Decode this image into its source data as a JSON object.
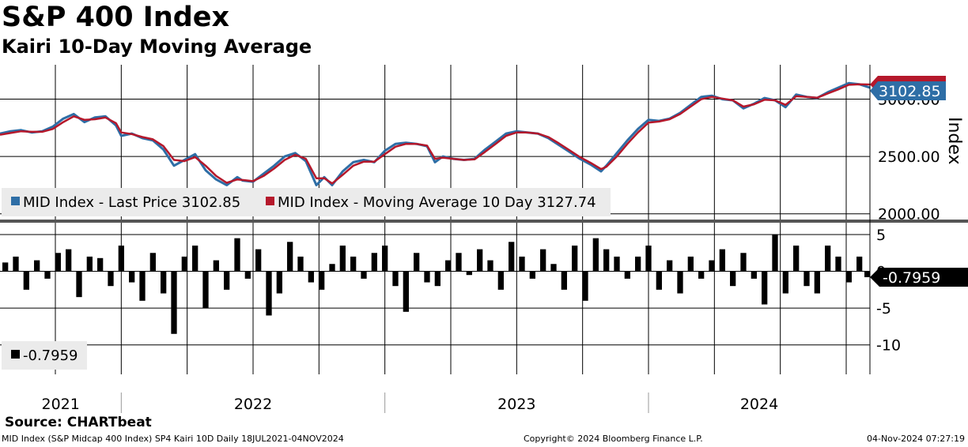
{
  "title": "S&P 400 Index",
  "subtitle": "Kairi 10-Day Moving Average",
  "source": "Source: CHARTbeat",
  "footer": {
    "left": "MID Index (S&P Midcap 400 Index) SP4 Kairi 10D  Daily 18JUL2021-04NOV2024",
    "center": "Copyright© 2024 Bloomberg Finance L.P.",
    "right": "04-Nov-2024 07:27:19"
  },
  "colors": {
    "price": "#2e6ea6",
    "ma": "#b5182b",
    "kairi": "#000000",
    "grid": "#000000"
  },
  "chart_data": [
    {
      "type": "line",
      "title": "S&P 400 Index",
      "ylabel": "Index",
      "ylim": [
        1950,
        3300
      ],
      "yticks": [
        2000,
        2500,
        3000
      ],
      "ytick_labels": [
        "2000.00",
        "2500.00",
        "3000.00"
      ],
      "x_range": [
        2021.54,
        2024.84
      ],
      "years": [
        "2021",
        "2022",
        "2023",
        "2024"
      ],
      "legend_placement": "bottom-left",
      "series": [
        {
          "name": "MID Index - Last Price",
          "legend": "MID Index - Last Price 3102.85",
          "color_key": "price",
          "last_label": "3102.85",
          "x": [
            2021.54,
            2021.58,
            2021.62,
            2021.66,
            2021.7,
            2021.74,
            2021.78,
            2021.82,
            2021.86,
            2021.9,
            2021.94,
            2021.98,
            2022.0,
            2022.04,
            2022.08,
            2022.12,
            2022.16,
            2022.2,
            2022.24,
            2022.28,
            2022.32,
            2022.36,
            2022.4,
            2022.44,
            2022.46,
            2022.5,
            2022.54,
            2022.58,
            2022.62,
            2022.66,
            2022.7,
            2022.74,
            2022.77,
            2022.8,
            2022.84,
            2022.88,
            2022.92,
            2022.96,
            2023.0,
            2023.04,
            2023.08,
            2023.12,
            2023.16,
            2023.19,
            2023.22,
            2023.26,
            2023.3,
            2023.34,
            2023.38,
            2023.42,
            2023.46,
            2023.5,
            2023.54,
            2023.58,
            2023.62,
            2023.66,
            2023.7,
            2023.74,
            2023.78,
            2023.82,
            2023.84,
            2023.88,
            2023.92,
            2023.96,
            2024.0,
            2024.04,
            2024.08,
            2024.12,
            2024.16,
            2024.2,
            2024.24,
            2024.28,
            2024.32,
            2024.36,
            2024.4,
            2024.44,
            2024.48,
            2024.52,
            2024.56,
            2024.6,
            2024.64,
            2024.68,
            2024.72,
            2024.76,
            2024.8,
            2024.84
          ],
          "values": [
            2700,
            2720,
            2730,
            2710,
            2720,
            2760,
            2830,
            2870,
            2800,
            2840,
            2850,
            2770,
            2680,
            2700,
            2660,
            2640,
            2560,
            2420,
            2470,
            2520,
            2380,
            2300,
            2250,
            2320,
            2290,
            2280,
            2350,
            2420,
            2500,
            2530,
            2460,
            2250,
            2320,
            2250,
            2370,
            2450,
            2470,
            2450,
            2550,
            2610,
            2620,
            2610,
            2590,
            2450,
            2500,
            2480,
            2470,
            2480,
            2560,
            2630,
            2700,
            2720,
            2710,
            2700,
            2660,
            2600,
            2540,
            2480,
            2430,
            2370,
            2420,
            2530,
            2640,
            2740,
            2820,
            2810,
            2830,
            2880,
            2950,
            3020,
            3030,
            3000,
            2990,
            2920,
            2960,
            3010,
            2990,
            2930,
            3040,
            3020,
            3010,
            3060,
            3100,
            3140,
            3130,
            3100
          ]
        },
        {
          "name": "MID Index - Moving Average 10 Day",
          "legend": "MID Index - Moving Average 10 Day 3127.74",
          "color_key": "ma",
          "last_label": "3127.74",
          "x": [
            2021.54,
            2021.58,
            2021.62,
            2021.66,
            2021.7,
            2021.74,
            2021.78,
            2021.82,
            2021.86,
            2021.9,
            2021.94,
            2021.98,
            2022.0,
            2022.04,
            2022.08,
            2022.12,
            2022.16,
            2022.2,
            2022.24,
            2022.28,
            2022.32,
            2022.36,
            2022.4,
            2022.44,
            2022.46,
            2022.5,
            2022.54,
            2022.58,
            2022.62,
            2022.66,
            2022.7,
            2022.74,
            2022.77,
            2022.8,
            2022.84,
            2022.88,
            2022.92,
            2022.96,
            2023.0,
            2023.04,
            2023.08,
            2023.12,
            2023.16,
            2023.19,
            2023.22,
            2023.26,
            2023.3,
            2023.34,
            2023.38,
            2023.42,
            2023.46,
            2023.5,
            2023.54,
            2023.58,
            2023.62,
            2023.66,
            2023.7,
            2023.74,
            2023.78,
            2023.82,
            2023.84,
            2023.88,
            2023.92,
            2023.96,
            2024.0,
            2024.04,
            2024.08,
            2024.12,
            2024.16,
            2024.2,
            2024.24,
            2024.28,
            2024.32,
            2024.36,
            2024.4,
            2024.44,
            2024.48,
            2024.52,
            2024.56,
            2024.6,
            2024.64,
            2024.68,
            2024.72,
            2024.76,
            2024.8,
            2024.84
          ],
          "values": [
            2690,
            2705,
            2720,
            2715,
            2715,
            2740,
            2800,
            2850,
            2820,
            2825,
            2840,
            2790,
            2710,
            2695,
            2670,
            2650,
            2590,
            2470,
            2460,
            2495,
            2420,
            2330,
            2270,
            2300,
            2295,
            2285,
            2330,
            2395,
            2470,
            2515,
            2480,
            2310,
            2310,
            2265,
            2340,
            2420,
            2455,
            2455,
            2520,
            2585,
            2610,
            2610,
            2595,
            2480,
            2490,
            2480,
            2470,
            2475,
            2540,
            2610,
            2680,
            2710,
            2710,
            2700,
            2670,
            2615,
            2555,
            2495,
            2445,
            2390,
            2410,
            2500,
            2610,
            2710,
            2795,
            2805,
            2825,
            2870,
            2935,
            3000,
            3020,
            3005,
            2990,
            2935,
            2955,
            2995,
            2990,
            2950,
            3025,
            3020,
            3012,
            3050,
            3085,
            3125,
            3130,
            3127.74
          ]
        }
      ]
    },
    {
      "type": "bar",
      "title": "Kairi 10-Day Moving Average",
      "legend": "-0.7959",
      "last_label": "-0.7959",
      "ylim": [
        -14,
        6.5
      ],
      "yticks": [
        5,
        0,
        -5,
        -10
      ],
      "ytick_labels": [
        "5",
        "0",
        "-5",
        "-10"
      ],
      "x": [
        2021.56,
        2021.6,
        2021.64,
        2021.68,
        2021.72,
        2021.76,
        2021.8,
        2021.84,
        2021.88,
        2021.92,
        2021.96,
        2022.0,
        2022.04,
        2022.08,
        2022.12,
        2022.16,
        2022.2,
        2022.24,
        2022.28,
        2022.32,
        2022.36,
        2022.4,
        2022.44,
        2022.48,
        2022.52,
        2022.56,
        2022.6,
        2022.64,
        2022.68,
        2022.72,
        2022.76,
        2022.8,
        2022.84,
        2022.88,
        2022.92,
        2022.96,
        2023.0,
        2023.04,
        2023.08,
        2023.12,
        2023.16,
        2023.2,
        2023.24,
        2023.28,
        2023.32,
        2023.36,
        2023.4,
        2023.44,
        2023.48,
        2023.52,
        2023.56,
        2023.6,
        2023.64,
        2023.68,
        2023.72,
        2023.76,
        2023.8,
        2023.84,
        2023.88,
        2023.92,
        2023.96,
        2024.0,
        2024.04,
        2024.08,
        2024.12,
        2024.16,
        2024.2,
        2024.24,
        2024.28,
        2024.32,
        2024.36,
        2024.4,
        2024.44,
        2024.48,
        2024.52,
        2024.56,
        2024.6,
        2024.64,
        2024.68,
        2024.72,
        2024.76,
        2024.8,
        2024.83
      ],
      "values": [
        1.2,
        2.0,
        -2.5,
        1.5,
        -1.0,
        2.5,
        3.0,
        -3.5,
        2.0,
        1.8,
        -2.0,
        3.5,
        -1.5,
        -4.0,
        2.5,
        -3.0,
        -8.5,
        2.0,
        3.5,
        -5.0,
        1.5,
        -2.5,
        4.5,
        -1.0,
        3.0,
        -6.0,
        -3.0,
        4.0,
        2.0,
        -1.5,
        -2.5,
        1.0,
        3.5,
        2.0,
        -1.0,
        2.5,
        3.5,
        -2.0,
        -5.5,
        2.5,
        -1.5,
        -2.0,
        1.5,
        2.5,
        -0.5,
        3.0,
        1.5,
        -2.5,
        4.0,
        2.0,
        -1.0,
        3.0,
        1.0,
        -2.5,
        3.5,
        -4.0,
        4.5,
        3.0,
        2.0,
        -1.0,
        2.0,
        3.5,
        -2.5,
        1.5,
        -3.0,
        2.0,
        -1.0,
        1.5,
        3.0,
        -2.0,
        2.5,
        -1.0,
        -4.5,
        5.0,
        -3.0,
        3.5,
        -2.0,
        -3.0,
        3.5,
        2.0,
        -1.5,
        2.0,
        -0.7959
      ]
    }
  ]
}
